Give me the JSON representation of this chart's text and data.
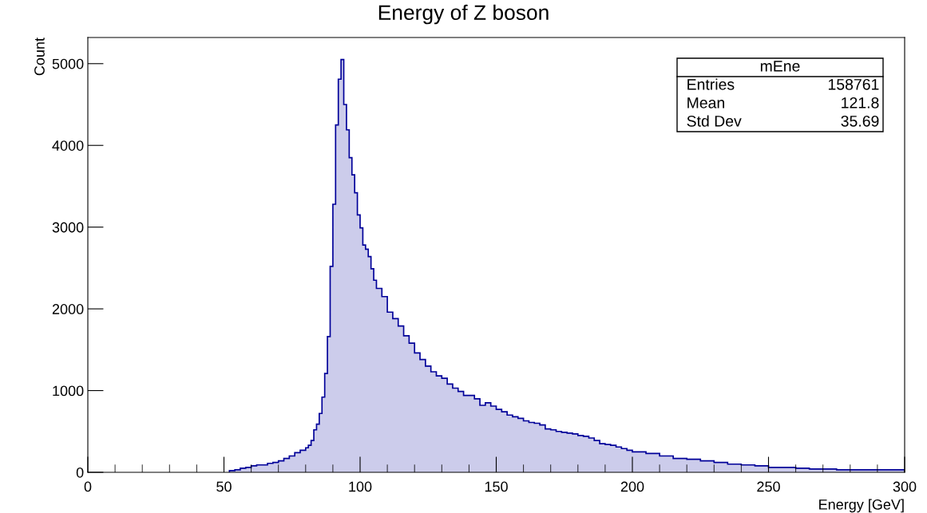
{
  "chart_data": {
    "type": "histogram",
    "title": "Energy of Z boson",
    "xlabel": "Energy [GeV]",
    "ylabel": "Count",
    "bins": [
      52,
      54,
      56,
      58,
      60,
      62,
      64,
      66,
      68,
      70,
      72,
      74,
      76,
      78,
      80,
      81,
      82,
      83,
      84,
      85,
      86,
      87,
      88,
      89,
      90,
      91,
      92,
      93,
      94,
      95,
      96,
      97,
      98,
      99,
      100,
      101,
      102,
      103,
      104,
      105,
      106,
      108,
      110,
      112,
      114,
      116,
      118,
      120,
      122,
      124,
      126,
      128,
      130,
      132,
      134,
      136,
      138,
      140,
      142,
      144,
      146,
      148,
      150,
      152,
      154,
      156,
      158,
      160,
      162,
      164,
      166,
      168,
      170,
      172,
      174,
      176,
      178,
      180,
      182,
      184,
      186,
      188,
      190,
      192,
      194,
      196,
      198,
      200,
      205,
      210,
      215,
      220,
      225,
      230,
      235,
      240,
      245,
      250,
      255,
      260,
      265,
      270,
      275,
      280,
      285,
      290,
      295,
      300
    ],
    "values": [
      20,
      30,
      50,
      60,
      80,
      90,
      90,
      110,
      120,
      140,
      170,
      200,
      240,
      270,
      300,
      330,
      390,
      520,
      590,
      720,
      920,
      1210,
      1660,
      2520,
      3280,
      4250,
      4810,
      5050,
      4500,
      4190,
      3850,
      3640,
      3420,
      3150,
      2990,
      2780,
      2730,
      2640,
      2490,
      2350,
      2250,
      2150,
      1960,
      1880,
      1790,
      1670,
      1580,
      1460,
      1380,
      1300,
      1230,
      1180,
      1150,
      1080,
      1030,
      990,
      940,
      940,
      900,
      820,
      850,
      810,
      770,
      740,
      700,
      680,
      660,
      630,
      610,
      600,
      580,
      530,
      520,
      500,
      490,
      480,
      470,
      450,
      440,
      420,
      390,
      350,
      340,
      330,
      310,
      290,
      270,
      250,
      230,
      200,
      170,
      160,
      140,
      120,
      100,
      90,
      80,
      60,
      60,
      50,
      40,
      40,
      30,
      30,
      30,
      30,
      30
    ],
    "color": "#000099",
    "xlim": [
      0,
      300
    ],
    "xticks": [
      0,
      50,
      100,
      150,
      200,
      250,
      300
    ],
    "ylim": [
      0,
      5320
    ],
    "yticks": [
      0,
      1000,
      2000,
      3000,
      4000,
      5000
    ],
    "grid": false,
    "legend": false,
    "annotations": [
      "mEne",
      "Entries",
      "158761",
      "Mean",
      "121.8",
      "Std Dev",
      "35.69"
    ]
  }
}
